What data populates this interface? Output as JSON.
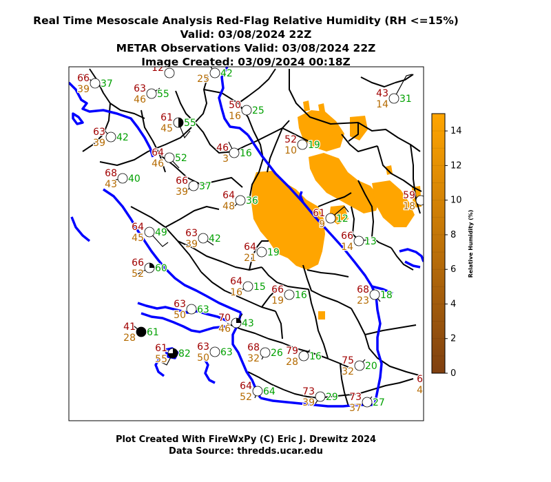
{
  "title_lines": [
    "Real Time Mesoscale Analysis Red-Flag Relative Humidity (RH <=15%)",
    "Valid: 03/08/2024 22Z",
    "METAR Observations Valid: 03/08/2024 22Z",
    "Image Created: 03/09/2024 00:18Z"
  ],
  "footer_lines": [
    "Plot Created With FireWxPy (C) Eric J. Drewitz 2024",
    "Data Source: thredds.ucar.edu"
  ],
  "colorbar": {
    "label": "Relative Humidity (%)",
    "ticks": [
      "0",
      "2",
      "4",
      "6",
      "8",
      "10",
      "12",
      "14"
    ],
    "min": 0,
    "max": 15,
    "color_low": "#7f4010",
    "color_high": "#ffa500"
  },
  "colors": {
    "temperature": "#a00000",
    "dewpoint": "#b46a00",
    "humidity": "#00a000",
    "state_border": "#0000ff",
    "county_border": "#000000",
    "rh_fill": "#ffa500"
  },
  "stations": [
    {
      "t": "66",
      "d": "39",
      "rh": "37",
      "cover": 0
    },
    {
      "t": "63",
      "d": "46",
      "rh": "55",
      "cover": 0
    },
    {
      "t": "12",
      "d": "",
      "rh": "",
      "cover": 0
    },
    {
      "t": "",
      "d": "25",
      "rh": "42",
      "cover": 0
    },
    {
      "t": "50",
      "d": "16",
      "rh": "25",
      "cover": 0
    },
    {
      "t": "43",
      "d": "14",
      "rh": "31",
      "cover": 0
    },
    {
      "t": "61",
      "d": "45",
      "rh": "55",
      "cover": 2
    },
    {
      "t": "63",
      "d": "39",
      "rh": "42",
      "cover": 0
    },
    {
      "t": "64",
      "d": "46",
      "rh": "52",
      "cover": 0
    },
    {
      "t": "46",
      "d": "3",
      "rh": "16",
      "cover": 0
    },
    {
      "t": "52",
      "d": "10",
      "rh": "19",
      "cover": 0
    },
    {
      "t": "68",
      "d": "43",
      "rh": "40",
      "cover": 0
    },
    {
      "t": "66",
      "d": "39",
      "rh": "37",
      "cover": 0
    },
    {
      "t": "64",
      "d": "48",
      "rh": "36",
      "cover": 0
    },
    {
      "t": "61",
      "d": "9",
      "rh": "12",
      "cover": 0
    },
    {
      "t": "59",
      "d": "18",
      "rh": "",
      "cover": 0
    },
    {
      "t": "64",
      "d": "45",
      "rh": "49",
      "cover": 0
    },
    {
      "t": "63",
      "d": "39",
      "rh": "42",
      "cover": 0
    },
    {
      "t": "64",
      "d": "21",
      "rh": "19",
      "cover": 0
    },
    {
      "t": "66",
      "d": "14",
      "rh": "13",
      "cover": 0
    },
    {
      "t": "66",
      "d": "52",
      "rh": "60",
      "cover": 1
    },
    {
      "t": "64",
      "d": "16",
      "rh": "15",
      "cover": 0
    },
    {
      "t": "66",
      "d": "19",
      "rh": "16",
      "cover": 0
    },
    {
      "t": "68",
      "d": "23",
      "rh": "18",
      "cover": 0
    },
    {
      "t": "63",
      "d": "50",
      "rh": "63",
      "cover": 0
    },
    {
      "t": "41",
      "d": "28",
      "rh": "61",
      "cover": 4
    },
    {
      "t": "70",
      "d": "46",
      "rh": "43",
      "cover": 1
    },
    {
      "t": "61",
      "d": "55",
      "rh": "82",
      "cover": 3
    },
    {
      "t": "63",
      "d": "50",
      "rh": "63",
      "cover": 0
    },
    {
      "t": "68",
      "d": "32",
      "rh": "26",
      "cover": 0
    },
    {
      "t": "79",
      "d": "28",
      "rh": "16",
      "cover": 0
    },
    {
      "t": "75",
      "d": "32",
      "rh": "20",
      "cover": 0
    },
    {
      "t": "64",
      "d": "52",
      "rh": "64",
      "cover": 0
    },
    {
      "t": "73",
      "d": "39",
      "rh": "29",
      "cover": 0
    },
    {
      "t": "73",
      "d": "37",
      "rh": "27",
      "cover": 0
    },
    {
      "t": "6",
      "d": "4",
      "rh": "",
      "cover": 0
    }
  ]
}
